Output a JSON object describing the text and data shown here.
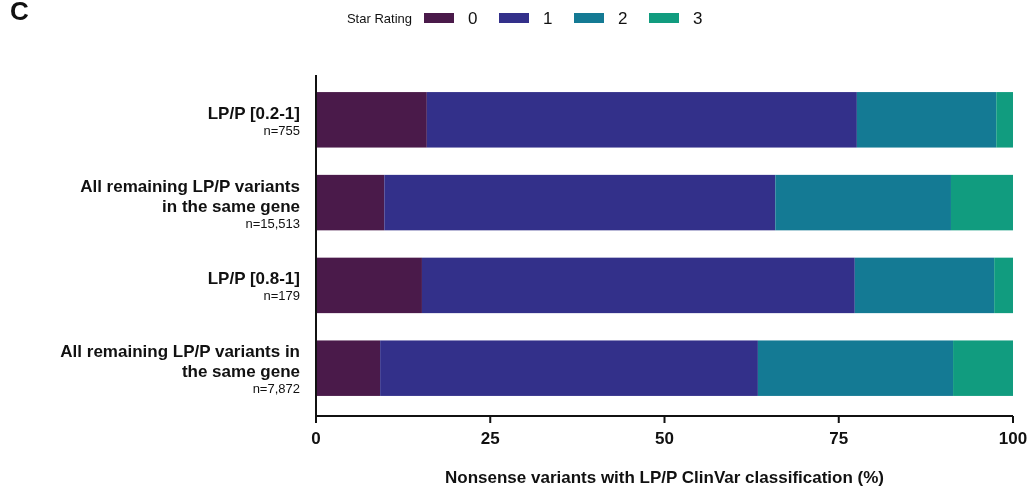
{
  "chart_data": {
    "type": "bar",
    "orientation": "horizontal",
    "stacked": true,
    "categories": [
      "LP/P [0.2-1]\nn=755",
      "All remaining LP/P variants\nin the same gene\nn=15,513",
      "LP/P [0.8-1]\nn=179",
      "All remaining LP/P variants in\nthe same gene\nn=7,872"
    ],
    "series": [
      {
        "name": "0",
        "color": "#4a1a4a",
        "values": [
          15.9,
          9.8,
          15.2,
          9.2
        ]
      },
      {
        "name": "1",
        "color": "#33308a",
        "values": [
          61.7,
          56.1,
          62.1,
          54.2
        ]
      },
      {
        "name": "2",
        "color": "#147a94",
        "values": [
          20.0,
          25.2,
          20.0,
          28.0
        ]
      },
      {
        "name": "3",
        "color": "#119c7f",
        "values": [
          2.4,
          8.9,
          2.7,
          8.6
        ]
      }
    ],
    "xlim": [
      0,
      100
    ],
    "xticks": [
      0,
      25,
      50,
      75,
      100
    ],
    "xlabel": "Nonsense variants with LP/P ClinVar classification (%)",
    "legend_title": "Star Rating",
    "legend": "top",
    "grid": false,
    "annotations": [
      "C"
    ]
  }
}
